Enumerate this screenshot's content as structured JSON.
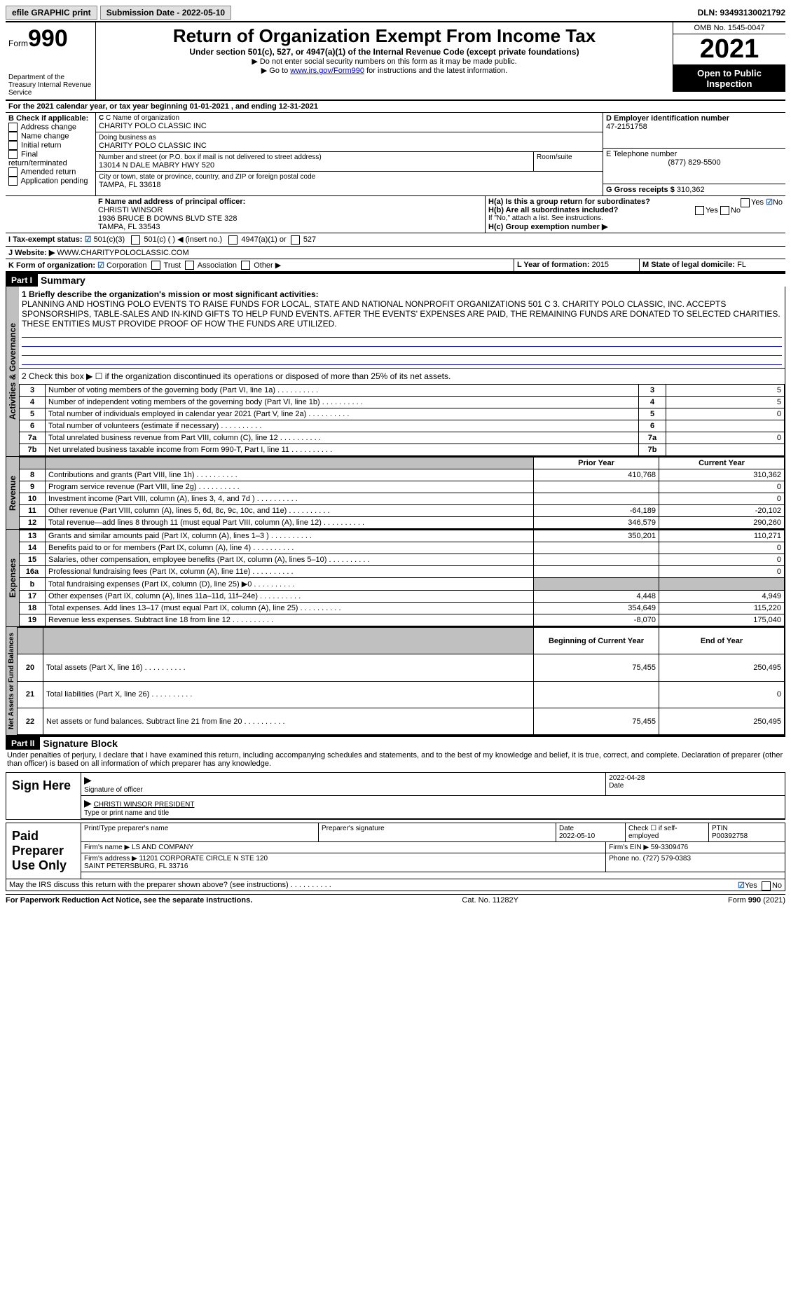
{
  "topbar": {
    "efile": "efile GRAPHIC print",
    "submission": "Submission Date - 2022-05-10",
    "dln": "DLN: 93493130021792"
  },
  "header": {
    "form_word": "Form",
    "form_num": "990",
    "dept": "Department of the Treasury\nInternal Revenue Service",
    "title": "Return of Organization Exempt From Income Tax",
    "subtitle": "Under section 501(c), 527, or 4947(a)(1) of the Internal Revenue Code (except private foundations)",
    "note1": "▶ Do not enter social security numbers on this form as it may be made public.",
    "note2_pre": "▶ Go to ",
    "note2_link": "www.irs.gov/Form990",
    "note2_post": " for instructions and the latest information.",
    "omb": "OMB No. 1545-0047",
    "year": "2021",
    "open": "Open to Public Inspection"
  },
  "A": "For the 2021 calendar year, or tax year beginning 01-01-2021     , and ending 12-31-2021",
  "B": {
    "label": "B Check if applicable:",
    "items": [
      "Address change",
      "Name change",
      "Initial return",
      "Final return/terminated",
      "Amended return",
      "Application pending"
    ]
  },
  "C": {
    "name_label": "C Name of organization",
    "name": "CHARITY POLO CLASSIC INC",
    "dba_label": "Doing business as",
    "dba": "CHARITY POLO CLASSIC INC",
    "addr_label": "Number and street (or P.O. box if mail is not delivered to street address)",
    "addr": "13014 N DALE MABRY HWY 520",
    "room_label": "Room/suite",
    "city_label": "City or town, state or province, country, and ZIP or foreign postal code",
    "city": "TAMPA, FL  33618"
  },
  "D": {
    "label": "D Employer identification number",
    "value": "47-2151758"
  },
  "E": {
    "label": "E Telephone number",
    "value": "(877) 829-5500"
  },
  "G": {
    "label": "G Gross receipts $",
    "value": "310,362"
  },
  "F": {
    "label": "F  Name and address of principal officer:",
    "name": "CHRISTI WINSOR",
    "addr1": "1936 BRUCE B DOWNS BLVD STE 328",
    "addr2": "TAMPA, FL  33543"
  },
  "H": {
    "a": "H(a)  Is this a group return for subordinates?",
    "a_no": true,
    "b": "H(b)  Are all subordinates included?",
    "b_note": "If \"No,\" attach a list. See instructions.",
    "c": "H(c)  Group exemption number ▶"
  },
  "I": {
    "label": "I   Tax-exempt status:",
    "c3": "501(c)(3)",
    "c": "501(c) (   ) ◀ (insert no.)",
    "a": "4947(a)(1) or",
    "s": "527"
  },
  "J": {
    "label": "J   Website: ▶",
    "value": "WWW.CHARITYPOLOCLASSIC.COM"
  },
  "K": {
    "label": "K Form of organization:",
    "opts": [
      "Corporation",
      "Trust",
      "Association",
      "Other ▶"
    ]
  },
  "L": {
    "label": "L Year of formation:",
    "value": "2015"
  },
  "M": {
    "label": "M State of legal domicile:",
    "value": "FL"
  },
  "part1": {
    "num": "Part I",
    "title": "Summary",
    "q1_label": "1  Briefly describe the organization's mission or most significant activities:",
    "mission": "PLANNING AND HOSTING POLO EVENTS TO RAISE FUNDS FOR LOCAL, STATE AND NATIONAL NONPROFIT ORGANIZATIONS 501 C 3. CHARITY POLO CLASSIC, INC. ACCEPTS SPONSORSHIPS, TABLE-SALES AND IN-KIND GIFTS TO HELP FUND EVENTS. AFTER THE EVENTS' EXPENSES ARE PAID, THE REMAINING FUNDS ARE DONATED TO SELECTED CHARITIES. THESE ENTITIES MUST PROVIDE PROOF OF HOW THE FUNDS ARE UTILIZED.",
    "q2": "2   Check this box ▶ ☐  if the organization discontinued its operations or disposed of more than 25% of its net assets.",
    "rows_gov": [
      {
        "n": "3",
        "t": "Number of voting members of the governing body (Part VI, line 1a)",
        "v": "5"
      },
      {
        "n": "4",
        "t": "Number of independent voting members of the governing body (Part VI, line 1b)",
        "v": "5"
      },
      {
        "n": "5",
        "t": "Total number of individuals employed in calendar year 2021 (Part V, line 2a)",
        "v": "0"
      },
      {
        "n": "6",
        "t": "Total number of volunteers (estimate if necessary)",
        "v": ""
      },
      {
        "n": "7a",
        "t": "Total unrelated business revenue from Part VIII, column (C), line 12",
        "v": "0"
      },
      {
        "n": "7b",
        "t": "Net unrelated business taxable income from Form 990-T, Part I, line 11",
        "v": ""
      }
    ],
    "hdr_prior": "Prior Year",
    "hdr_curr": "Current Year",
    "rev": [
      {
        "n": "8",
        "t": "Contributions and grants (Part VIII, line 1h)",
        "p": "410,768",
        "c": "310,362"
      },
      {
        "n": "9",
        "t": "Program service revenue (Part VIII, line 2g)",
        "p": "",
        "c": "0"
      },
      {
        "n": "10",
        "t": "Investment income (Part VIII, column (A), lines 3, 4, and 7d )",
        "p": "",
        "c": "0"
      },
      {
        "n": "11",
        "t": "Other revenue (Part VIII, column (A), lines 5, 6d, 8c, 9c, 10c, and 11e)",
        "p": "-64,189",
        "c": "-20,102"
      },
      {
        "n": "12",
        "t": "Total revenue—add lines 8 through 11 (must equal Part VIII, column (A), line 12)",
        "p": "346,579",
        "c": "290,260"
      }
    ],
    "exp": [
      {
        "n": "13",
        "t": "Grants and similar amounts paid (Part IX, column (A), lines 1–3 )",
        "p": "350,201",
        "c": "110,271"
      },
      {
        "n": "14",
        "t": "Benefits paid to or for members (Part IX, column (A), line 4)",
        "p": "",
        "c": "0"
      },
      {
        "n": "15",
        "t": "Salaries, other compensation, employee benefits (Part IX, column (A), lines 5–10)",
        "p": "",
        "c": "0"
      },
      {
        "n": "16a",
        "t": "Professional fundraising fees (Part IX, column (A), line 11e)",
        "p": "",
        "c": "0"
      },
      {
        "n": "b",
        "t": "Total fundraising expenses (Part IX, column (D), line 25) ▶0",
        "p": "shade",
        "c": "shade"
      },
      {
        "n": "17",
        "t": "Other expenses (Part IX, column (A), lines 11a–11d, 11f–24e)",
        "p": "4,448",
        "c": "4,949"
      },
      {
        "n": "18",
        "t": "Total expenses. Add lines 13–17 (must equal Part IX, column (A), line 25)",
        "p": "354,649",
        "c": "115,220"
      },
      {
        "n": "19",
        "t": "Revenue less expenses. Subtract line 18 from line 12",
        "p": "-8,070",
        "c": "175,040"
      }
    ],
    "hdr_beg": "Beginning of Current Year",
    "hdr_end": "End of Year",
    "net": [
      {
        "n": "20",
        "t": "Total assets (Part X, line 16)",
        "p": "75,455",
        "c": "250,495"
      },
      {
        "n": "21",
        "t": "Total liabilities (Part X, line 26)",
        "p": "",
        "c": "0"
      },
      {
        "n": "22",
        "t": "Net assets or fund balances. Subtract line 21 from line 20",
        "p": "75,455",
        "c": "250,495"
      }
    ]
  },
  "vert": {
    "gov": "Activities & Governance",
    "rev": "Revenue",
    "exp": "Expenses",
    "net": "Net Assets or Fund Balances"
  },
  "part2": {
    "num": "Part II",
    "title": "Signature Block",
    "decl": "Under penalties of perjury, I declare that I have examined this return, including accompanying schedules and statements, and to the best of my knowledge and belief, it is true, correct, and complete. Declaration of preparer (other than officer) is based on all information of which preparer has any knowledge.",
    "sign_here": "Sign Here",
    "sig_officer": "Signature of officer",
    "date": "Date",
    "sig_date": "2022-04-28",
    "officer": "CHRISTI WINSOR  PRESIDENT",
    "type_name": "Type or print name and title",
    "paid": "Paid Preparer Use Only",
    "pp_name_label": "Print/Type preparer's name",
    "pp_sig_label": "Preparer's signature",
    "pp_date_label": "Date",
    "pp_date": "2022-05-10",
    "pp_check": "Check ☐ if self-employed",
    "ptin_label": "PTIN",
    "ptin": "P00392758",
    "firm_name_label": "Firm's name    ▶",
    "firm_name": "LS AND COMPANY",
    "firm_ein_label": "Firm's EIN ▶",
    "firm_ein": "59-3309476",
    "firm_addr_label": "Firm's address ▶",
    "firm_addr": "11201 CORPORATE CIRCLE N STE 120\n                     SAINT PETERSBURG, FL  33716",
    "phone_label": "Phone no.",
    "phone": "(727) 579-0383",
    "discuss": "May the IRS discuss this return with the preparer shown above? (see instructions)",
    "yes": "Yes",
    "no": "No"
  },
  "footer": {
    "left": "For Paperwork Reduction Act Notice, see the separate instructions.",
    "mid": "Cat. No. 11282Y",
    "right": "Form 990 (2021)"
  }
}
